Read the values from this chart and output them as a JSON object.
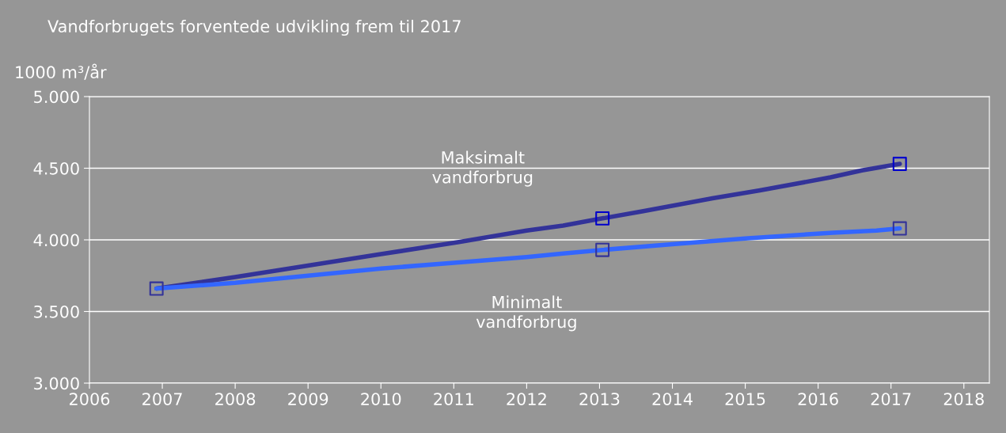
{
  "chart_data": {
    "type": "line",
    "title": "Vandforbrugets forventede udvikling frem til 2017",
    "ylabel": "1000 m³/år",
    "series": [
      {
        "name": "Maksimalt\nvandforbrug",
        "color": "#333399",
        "x": [
          2006.92,
          2008,
          2009,
          2010,
          2011.07,
          2012,
          2012.5,
          2013.04,
          2013.6,
          2014.55,
          2015.2,
          2016.17,
          2016.6,
          2017.12
        ],
        "values": [
          3660,
          3740,
          3820,
          3900,
          3985,
          4065,
          4100,
          4150,
          4200,
          4290,
          4345,
          4436,
          4485,
          4530
        ]
      },
      {
        "name": "Minimalt\nvandforbrug",
        "color": "#3366ff",
        "x": [
          2006.92,
          2008,
          2009,
          2010,
          2011,
          2012,
          2012.5,
          2013.04,
          2014,
          2015,
          2016.2,
          2016.8,
          2017.12
        ],
        "values": [
          3660,
          3700,
          3750,
          3800,
          3840,
          3880,
          3905,
          3930,
          3970,
          4010,
          4050,
          4065,
          4080
        ]
      },
      {
        "type": "scatter",
        "marker": "square",
        "color": "#0000cc",
        "x": [
          2013.04,
          2017.12
        ],
        "values": [
          4150,
          4530
        ]
      },
      {
        "type": "scatter",
        "marker": "square",
        "color": "#333399",
        "x": [
          2006.92,
          2013.04,
          2017.12
        ],
        "values": [
          3660,
          3930,
          4080
        ]
      }
    ],
    "xlim": [
      2006,
      2018.35
    ],
    "xticks": [
      2006,
      2007,
      2008,
      2009,
      2010,
      2011,
      2012,
      2013,
      2014,
      2015,
      2016,
      2017,
      2018
    ],
    "ylim": [
      3000,
      5000
    ],
    "yticks": [
      {
        "value": 3000,
        "label": "3.000"
      },
      {
        "value": 3500,
        "label": "3.500"
      },
      {
        "value": 4000,
        "label": "4.000"
      },
      {
        "value": 4500,
        "label": "4.500"
      },
      {
        "value": 5000,
        "label": "5.000"
      }
    ],
    "grid": "y",
    "legend": false
  }
}
